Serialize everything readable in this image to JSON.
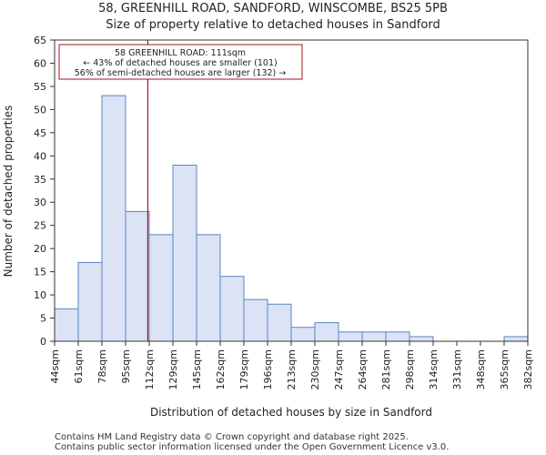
{
  "title_line1": "58, GREENHILL ROAD, SANDFORD, WINSCOMBE, BS25 5PB",
  "title_line2": "Size of property relative to detached houses in Sandford",
  "footer_line1": "Contains HM Land Registry data © Crown copyright and database right 2025.",
  "footer_line2": "Contains public sector information licensed under the Open Government Licence v3.0.",
  "colors": {
    "bar_fill": "#dbe3f4",
    "bar_stroke": "#5b84c4",
    "marker": "#a0141e",
    "annotation_border": "#a0141e"
  },
  "chart_data": {
    "type": "bar",
    "title": "Size of property relative to detached houses in Sandford",
    "xlabel": "Distribution of detached houses by size in Sandford",
    "ylabel": "Number of detached properties",
    "ylim": [
      0,
      65
    ],
    "yticks": [
      0,
      5,
      10,
      15,
      20,
      25,
      30,
      35,
      40,
      45,
      50,
      55,
      60,
      65
    ],
    "bin_edge_labels": [
      "44sqm",
      "61sqm",
      "78sqm",
      "95sqm",
      "112sqm",
      "129sqm",
      "145sqm",
      "162sqm",
      "179sqm",
      "196sqm",
      "213sqm",
      "230sqm",
      "247sqm",
      "264sqm",
      "281sqm",
      "298sqm",
      "314sqm",
      "331sqm",
      "348sqm",
      "365sqm",
      "382sqm"
    ],
    "values": [
      7,
      17,
      53,
      28,
      23,
      38,
      23,
      14,
      9,
      8,
      3,
      4,
      2,
      2,
      2,
      1,
      0,
      0,
      0,
      1
    ],
    "marker": {
      "value_sqm": 111,
      "bin_position": 3.94
    },
    "annotation": {
      "line1": "58 GREENHILL ROAD: 111sqm",
      "line2": "← 43% of detached houses are smaller (101)",
      "line3": "56% of semi-detached houses are larger (132) →"
    }
  }
}
